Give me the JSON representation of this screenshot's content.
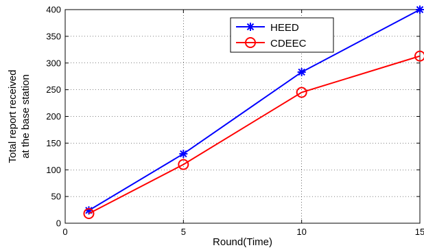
{
  "chart_data": {
    "type": "line",
    "title": "",
    "xlabel": "Round(Time)",
    "ylabel_lines": [
      "Total report received",
      "at the base station"
    ],
    "xlim": [
      0,
      15
    ],
    "ylim": [
      0,
      400
    ],
    "x_ticks": [
      0,
      5,
      10,
      15
    ],
    "y_ticks": [
      0,
      50,
      100,
      150,
      200,
      250,
      300,
      350,
      400
    ],
    "grid": true,
    "legend_position": "top-right",
    "x": [
      1,
      5,
      10,
      15
    ],
    "series": [
      {
        "name": "HEED",
        "values": [
          24,
          130,
          283,
          400
        ],
        "color": "#0000ff",
        "marker": "asterisk"
      },
      {
        "name": "CDEEC",
        "values": [
          18,
          110,
          245,
          313
        ],
        "color": "#ff0000",
        "marker": "circle"
      }
    ]
  }
}
